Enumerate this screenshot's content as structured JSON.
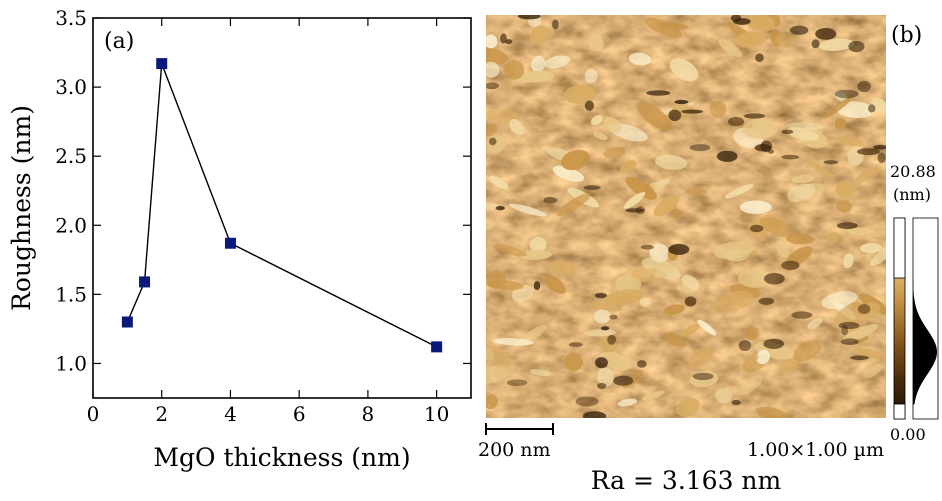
{
  "chart_data": [
    {
      "type": "line",
      "panel_label": "(a)",
      "xlabel": "MgO thickness (nm)",
      "ylabel": "Roughness (nm)",
      "xlim": [
        0,
        11
      ],
      "ylim": [
        0.75,
        3.5
      ],
      "xticks": [
        0,
        2,
        4,
        6,
        8,
        10
      ],
      "yticks": [
        1.0,
        1.5,
        2.0,
        2.5,
        3.0,
        3.5
      ],
      "ytick_labels": [
        "1.0",
        "1.5",
        "2.0",
        "2.5",
        "3.0",
        "3.5"
      ],
      "grid": false,
      "series": [
        {
          "x": [
            1.0,
            1.5,
            2.0,
            4.0,
            10.0
          ],
          "y": [
            1.3,
            1.59,
            3.17,
            1.87,
            1.12
          ],
          "marker": "square",
          "marker_color": "#0a1a7a",
          "line_color": "#000000"
        }
      ]
    },
    {
      "type": "heatmap",
      "panel_label": "(b)",
      "description_colormap": [
        "#1a0e04",
        "#4a2c0c",
        "#8a5a20",
        "#c89548",
        "#e8c888",
        "#fbf2d8"
      ],
      "colorbar": {
        "max_label": "20.88",
        "unit_label": "(nm)",
        "min_label": "0.00"
      },
      "scale_bar_label": "200 nm",
      "scan_size_label": "1.00×1.00 µm",
      "caption": "Ra = 3.163 nm"
    }
  ]
}
